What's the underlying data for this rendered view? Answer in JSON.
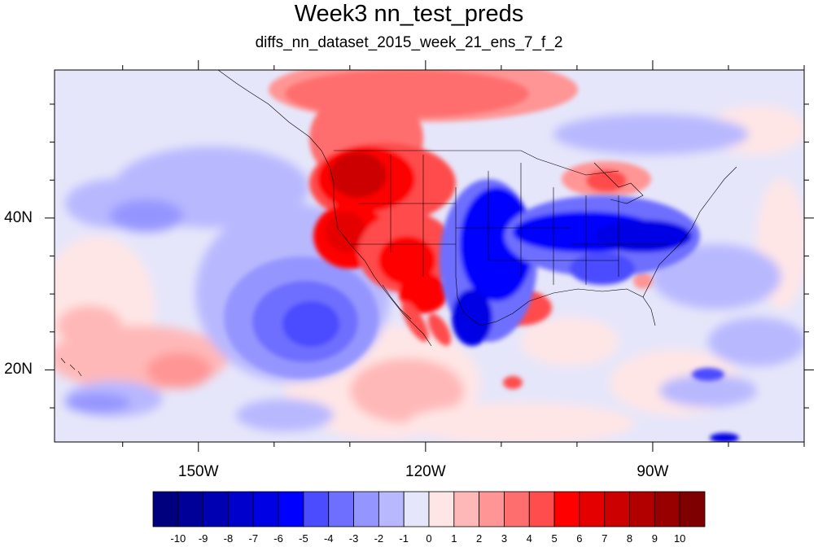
{
  "title": "Week3 nn_test_preds",
  "subtitle": "diffs_nn_dataset_2015_week_21_ens_7_f_2",
  "map": {
    "projection": "cylindrical equidistant",
    "lon_range": [
      -169,
      -70
    ],
    "lat_range": [
      10.5,
      59.5
    ],
    "lon_ticks": [
      {
        "value": -150,
        "label": "150W"
      },
      {
        "value": -120,
        "label": "120W"
      },
      {
        "value": -90,
        "label": "90W"
      }
    ],
    "lat_ticks": [
      {
        "value": 40,
        "label": "40N"
      },
      {
        "value": 20,
        "label": "20N"
      }
    ],
    "variable": "prediction difference (shaded contours)"
  },
  "colorbar": {
    "labels": [
      "-10",
      "-9",
      "-8",
      "-7",
      "-6",
      "-5",
      "-4",
      "-3",
      "-2",
      "-1",
      "0",
      "1",
      "2",
      "3",
      "4",
      "5",
      "6",
      "7",
      "8",
      "9",
      "10"
    ],
    "colors": [
      "#00007f",
      "#000098",
      "#0000b2",
      "#0000cc",
      "#0000e5",
      "#0000ff",
      "#4c4cff",
      "#6e6eff",
      "#9595ff",
      "#b8b8ff",
      "#e6e6fa",
      "#ffe6e6",
      "#ffb8b8",
      "#ff9595",
      "#ff6e6e",
      "#ff4c4c",
      "#ff0000",
      "#e50000",
      "#cc0000",
      "#b20000",
      "#980000",
      "#7f0000"
    ]
  }
}
